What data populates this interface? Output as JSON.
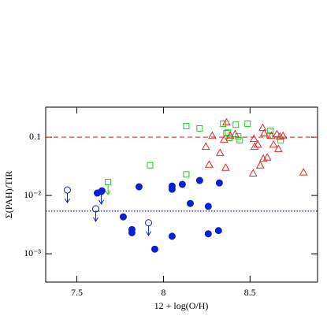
{
  "chart_data": {
    "type": "scatter",
    "x_label": "12 + log(O/H)",
    "y_label": "Σ(PAH)/TIR",
    "xlim": [
      7.32,
      8.89
    ],
    "ylim": [
      0.000327,
      0.327
    ],
    "y_log": true,
    "xticks": [
      7.5,
      8,
      8.5
    ],
    "yticks": [
      0.1,
      {
        "value": 0.01,
        "label": "10⁻²"
      },
      {
        "value": 0.001,
        "label": "10⁻³"
      }
    ],
    "hlines": [
      {
        "y": 0.1,
        "color": "#e8262b",
        "style": "dashed"
      },
      {
        "y": 0.0054,
        "color": "#1a1adb",
        "style": "dotted"
      }
    ],
    "series": [
      {
        "color": "#0b1fd6",
        "marker": "circle",
        "filled": true,
        "upper_limit": false,
        "x": [
          7.618,
          7.645,
          7.859,
          7.768,
          7.818,
          7.818,
          8.05,
          8.05,
          8.109,
          8.155,
          8.209,
          8.259,
          8.259,
          8.323,
          8.318,
          8.05,
          7.95
        ],
        "y": [
          0.011,
          0.012,
          0.0141,
          0.0043,
          0.0026,
          0.0023,
          0.0145,
          0.0128,
          0.0155,
          0.0073,
          0.0181,
          0.0065,
          0.0022,
          0.0164,
          0.0025,
          0.002,
          0.0012
        ]
      },
      {
        "color": "#0b1fd6",
        "marker": "circle",
        "filled": false,
        "upper_limit": true,
        "x": [
          7.445,
          7.609,
          7.641,
          7.914
        ],
        "y": [
          0.0124,
          0.0059,
          0.0117,
          0.0034
        ]
      },
      {
        "color": "#22cc22",
        "marker": "square",
        "filled": false,
        "upper_limit": true,
        "x": [
          7.68
        ],
        "y": [
          0.017
        ]
      },
      {
        "color": "#22cc22",
        "marker": "square",
        "filled": false,
        "upper_limit": false,
        "x": [
          7.923,
          8.132,
          8.132,
          8.209,
          8.345,
          8.364,
          8.373,
          8.382,
          8.418,
          8.432,
          8.441,
          8.486,
          8.618,
          8.677,
          8.614
        ],
        "y": [
          0.033,
          0.023,
          0.155,
          0.141,
          0.17,
          0.117,
          0.12,
          0.097,
          0.164,
          0.103,
          0.088,
          0.17,
          0.128,
          0.088,
          0.106
        ]
      },
      {
        "color": "#e8262b",
        "marker": "triangle",
        "filled": false,
        "upper_limit": false,
        "x": [
          8.245,
          8.282,
          8.264,
          8.327,
          8.35,
          8.364,
          8.359,
          8.386,
          8.414,
          8.523,
          8.527,
          8.545,
          8.518,
          8.573,
          8.582,
          8.559,
          8.577,
          8.6,
          8.623,
          8.636,
          8.655,
          8.673,
          8.691,
          8.664,
          8.809
        ],
        "y": [
          0.069,
          0.106,
          0.034,
          0.054,
          0.091,
          0.18,
          0.03,
          0.106,
          0.113,
          0.094,
          0.069,
          0.075,
          0.024,
          0.145,
          0.117,
          0.033,
          0.043,
          0.045,
          0.106,
          0.075,
          0.113,
          0.103,
          0.106,
          0.063,
          0.025
        ]
      }
    ]
  }
}
